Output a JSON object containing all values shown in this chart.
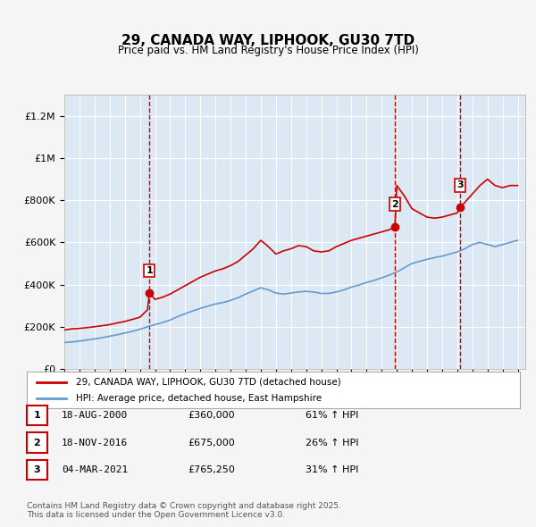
{
  "title": "29, CANADA WAY, LIPHOOK, GU30 7TD",
  "subtitle": "Price paid vs. HM Land Registry's House Price Index (HPI)",
  "background_color": "#dce9f5",
  "plot_bg_color": "#dce9f5",
  "red_line_color": "#cc0000",
  "blue_line_color": "#6699cc",
  "red_marker_color": "#cc0000",
  "vline_color": "#cc0000",
  "grid_color": "#ffffff",
  "ylabel": "",
  "ylim": [
    0,
    1300000
  ],
  "yticks": [
    0,
    200000,
    400000,
    600000,
    800000,
    1000000,
    1200000
  ],
  "ytick_labels": [
    "£0",
    "£200K",
    "£400K",
    "£600K",
    "£800K",
    "£1M",
    "£1.2M"
  ],
  "xlim_start": 1995.0,
  "xlim_end": 2025.5,
  "sale_dates": [
    2000.63,
    2016.88,
    2021.17
  ],
  "sale_prices": [
    360000,
    675000,
    765250
  ],
  "sale_labels": [
    "1",
    "2",
    "3"
  ],
  "legend_red": "29, CANADA WAY, LIPHOOK, GU30 7TD (detached house)",
  "legend_blue": "HPI: Average price, detached house, East Hampshire",
  "table_rows": [
    {
      "num": "1",
      "date": "18-AUG-2000",
      "price": "£360,000",
      "pct": "61% ↑ HPI"
    },
    {
      "num": "2",
      "date": "18-NOV-2016",
      "price": "£675,000",
      "pct": "26% ↑ HPI"
    },
    {
      "num": "3",
      "date": "04-MAR-2021",
      "price": "£765,250",
      "pct": "31% ↑ HPI"
    }
  ],
  "footnote": "Contains HM Land Registry data © Crown copyright and database right 2025.\nThis data is licensed under the Open Government Licence v3.0.",
  "red_x": [
    1995.0,
    1995.5,
    1996.0,
    1996.5,
    1997.0,
    1997.5,
    1998.0,
    1998.5,
    1999.0,
    1999.5,
    2000.0,
    2000.5,
    2000.63,
    2001.0,
    2001.5,
    2002.0,
    2002.5,
    2003.0,
    2003.5,
    2004.0,
    2004.5,
    2005.0,
    2005.5,
    2006.0,
    2006.5,
    2007.0,
    2007.5,
    2008.0,
    2008.5,
    2009.0,
    2009.5,
    2010.0,
    2010.5,
    2011.0,
    2011.5,
    2012.0,
    2012.5,
    2013.0,
    2013.5,
    2014.0,
    2014.5,
    2015.0,
    2015.5,
    2016.0,
    2016.5,
    2016.88,
    2017.0,
    2017.5,
    2018.0,
    2018.5,
    2019.0,
    2019.5,
    2020.0,
    2020.5,
    2021.0,
    2021.17,
    2021.5,
    2022.0,
    2022.5,
    2023.0,
    2023.5,
    2024.0,
    2024.5,
    2025.0
  ],
  "red_y": [
    185000,
    190000,
    192000,
    196000,
    200000,
    205000,
    210000,
    218000,
    225000,
    235000,
    245000,
    280000,
    360000,
    330000,
    340000,
    355000,
    375000,
    395000,
    415000,
    435000,
    450000,
    465000,
    475000,
    490000,
    510000,
    540000,
    570000,
    610000,
    580000,
    545000,
    560000,
    570000,
    585000,
    580000,
    560000,
    555000,
    560000,
    580000,
    595000,
    610000,
    620000,
    630000,
    640000,
    650000,
    660000,
    675000,
    870000,
    820000,
    760000,
    740000,
    720000,
    715000,
    720000,
    730000,
    740000,
    765250,
    790000,
    830000,
    870000,
    900000,
    870000,
    860000,
    870000,
    870000
  ],
  "blue_x": [
    1995.0,
    1995.5,
    1996.0,
    1996.5,
    1997.0,
    1997.5,
    1998.0,
    1998.5,
    1999.0,
    1999.5,
    2000.0,
    2000.5,
    2001.0,
    2001.5,
    2002.0,
    2002.5,
    2003.0,
    2003.5,
    2004.0,
    2004.5,
    2005.0,
    2005.5,
    2006.0,
    2006.5,
    2007.0,
    2007.5,
    2008.0,
    2008.5,
    2009.0,
    2009.5,
    2010.0,
    2010.5,
    2011.0,
    2011.5,
    2012.0,
    2012.5,
    2013.0,
    2013.5,
    2014.0,
    2014.5,
    2015.0,
    2015.5,
    2016.0,
    2016.5,
    2017.0,
    2017.5,
    2018.0,
    2018.5,
    2019.0,
    2019.5,
    2020.0,
    2020.5,
    2021.0,
    2021.5,
    2022.0,
    2022.5,
    2023.0,
    2023.5,
    2024.0,
    2024.5,
    2025.0
  ],
  "blue_y": [
    125000,
    128000,
    132000,
    137000,
    142000,
    148000,
    155000,
    162000,
    170000,
    178000,
    188000,
    200000,
    210000,
    220000,
    232000,
    248000,
    262000,
    275000,
    287000,
    298000,
    308000,
    315000,
    325000,
    338000,
    355000,
    370000,
    385000,
    375000,
    360000,
    355000,
    360000,
    365000,
    368000,
    365000,
    358000,
    358000,
    365000,
    375000,
    388000,
    398000,
    410000,
    420000,
    432000,
    445000,
    460000,
    480000,
    500000,
    510000,
    520000,
    528000,
    535000,
    545000,
    555000,
    570000,
    590000,
    600000,
    590000,
    580000,
    590000,
    600000,
    610000
  ]
}
